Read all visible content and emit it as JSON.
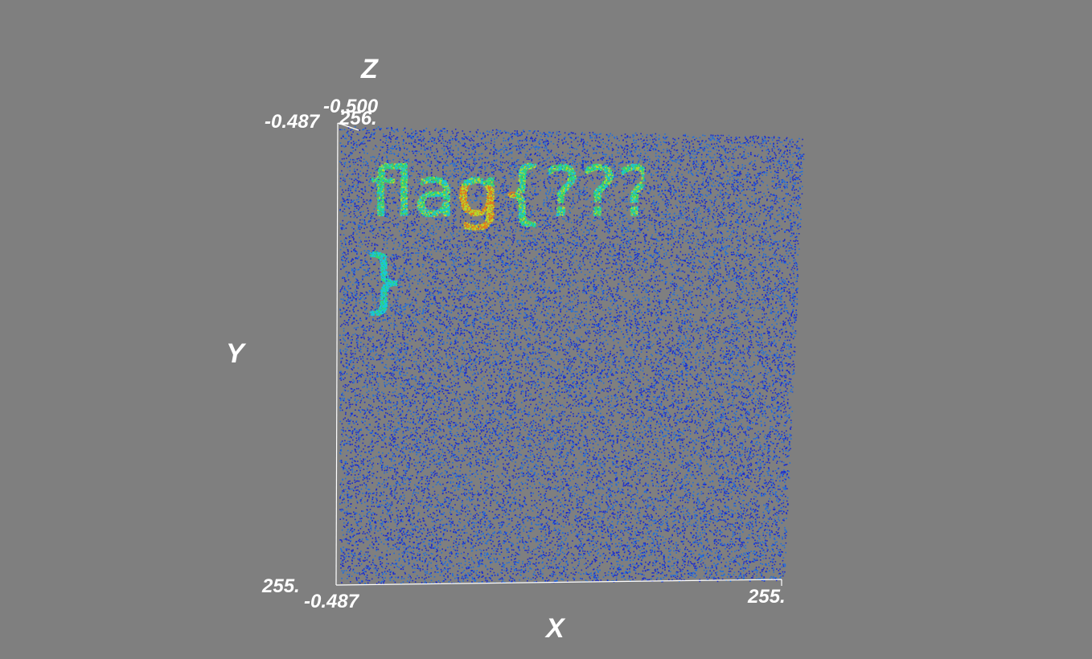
{
  "chart_data": {
    "type": "scatter",
    "background": "#7f7f7f",
    "axes": {
      "x": {
        "title": "X",
        "range_labels": [
          "-0.487",
          "255."
        ]
      },
      "y": {
        "title": "Y",
        "range_labels": [
          "-0.487",
          "255."
        ]
      },
      "z": {
        "title": "Z",
        "range_labels": [
          "-0.500",
          "256."
        ]
      }
    },
    "colormap": [
      "#1a2bd0",
      "#1e6fe0",
      "#19c7d6",
      "#2fd76a",
      "#b8d82a",
      "#e27a1c"
    ],
    "hidden_text": [
      "flag{???",
      "}"
    ]
  }
}
